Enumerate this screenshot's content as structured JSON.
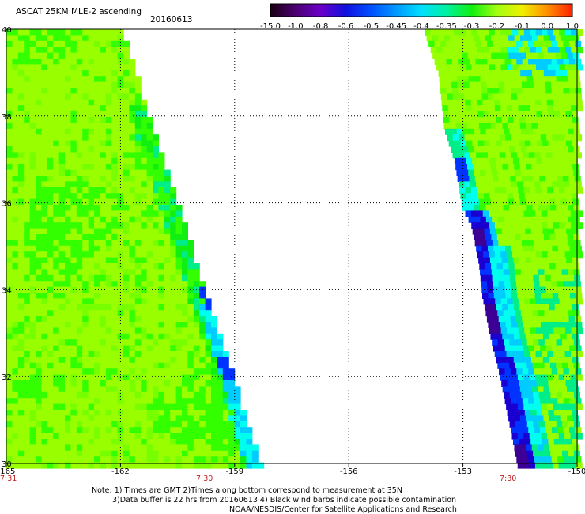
{
  "header": {
    "title": "ASCAT 25KM MLE-2 ascending",
    "date": "20160613"
  },
  "colorbar": {
    "labels": [
      "-15.0",
      "-1.0",
      "-0.8",
      "-0.6",
      "-0.5",
      "-0.45",
      "-0.4",
      "-0.35",
      "-0.3",
      "-0.2",
      "-0.1",
      "0.0",
      "1.0"
    ],
    "colors": [
      "#1a0010",
      "#4b0070",
      "#6a00c8",
      "#1010e0",
      "#0050ff",
      "#0098ff",
      "#00e0ff",
      "#00f0a0",
      "#10f010",
      "#a0ff10",
      "#f0f000",
      "#ff9000",
      "#ff2000"
    ]
  },
  "map": {
    "lat_labels": [
      "40",
      "38",
      "36",
      "34",
      "32",
      "30"
    ],
    "lon_labels": [
      "-165",
      "-162",
      "-159",
      "-156",
      "-153",
      "-150"
    ],
    "lon_range": [
      -165,
      -150
    ],
    "lat_range": [
      30,
      40
    ],
    "palette": {
      "lime": "#99ff00",
      "green": "#33ff00",
      "bright_green": "#11ee11",
      "cyan_green": "#00ee88",
      "cyan": "#00ffee",
      "light_blue": "#00ccff",
      "blue": "#0033ff",
      "dark_blue": "#1a00d0",
      "purple": "#3c0096",
      "grid": "#000000"
    }
  },
  "times": {
    "left": "7:31",
    "mid": "7:30",
    "right": "7:30"
  },
  "notes": {
    "line1": "Note: 1) Times are GMT 2)Times along bottom correspond to measurement at 35N",
    "line2": "3)Data buffer is 22 hrs from 20160613 4) Black wind barbs indicate possible contamination",
    "line3": "NOAA/NESDIS/Center for Satellite Applications and Research"
  }
}
